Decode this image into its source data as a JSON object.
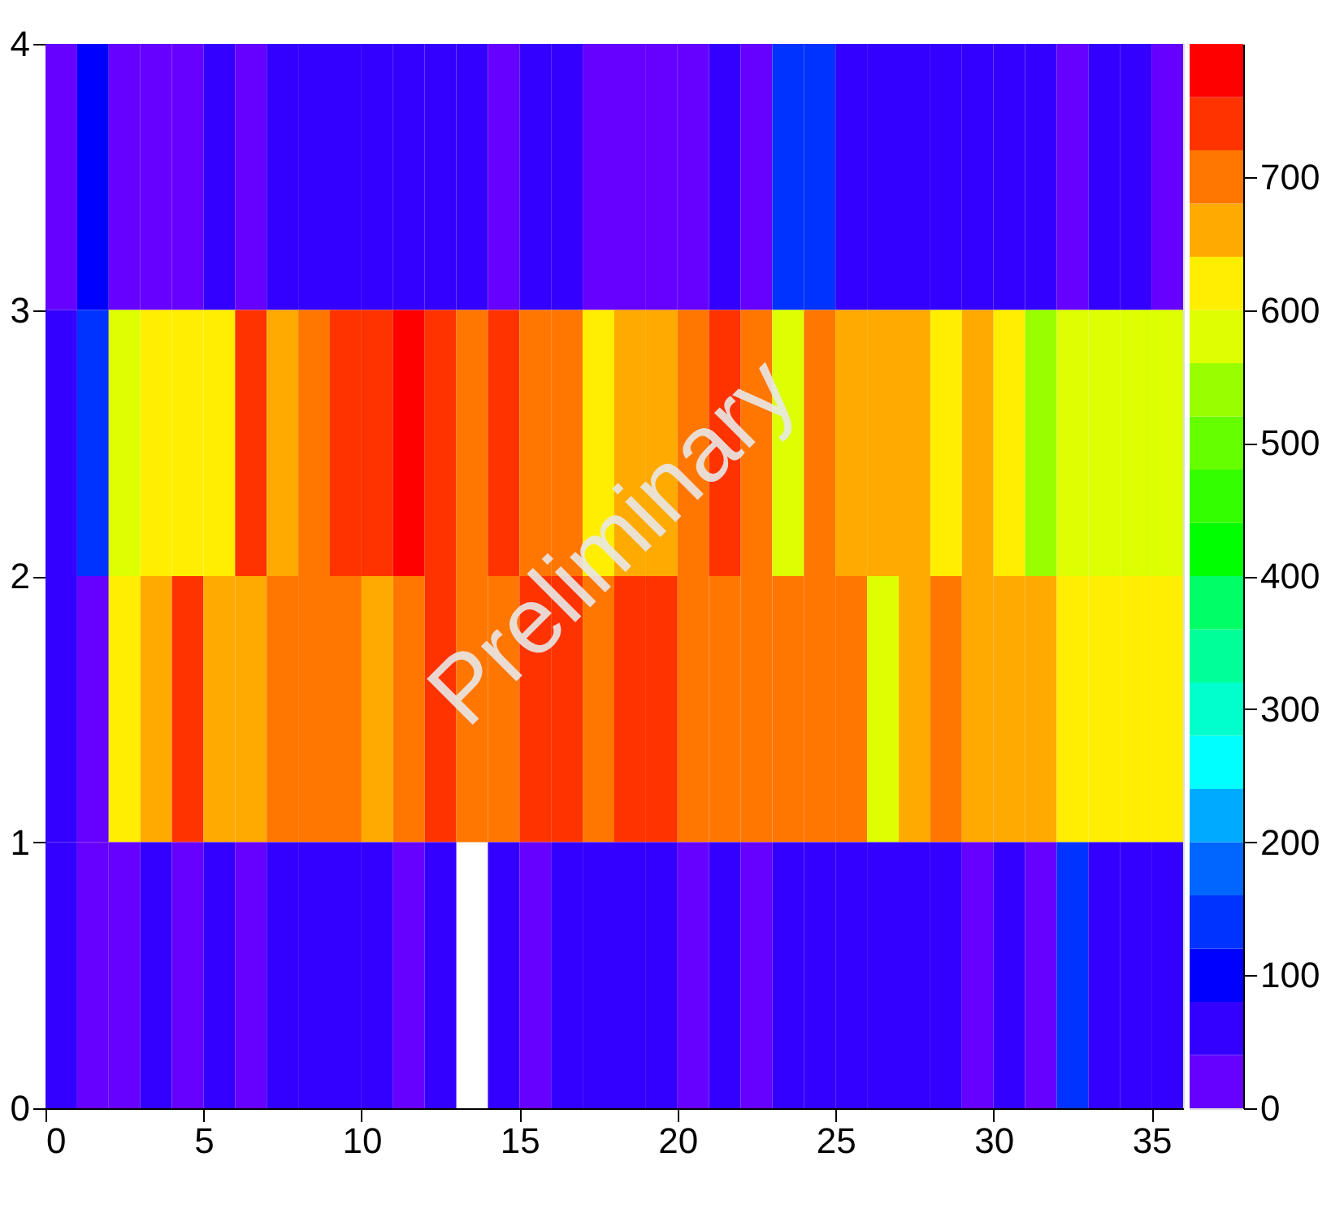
{
  "chart_data": {
    "type": "heatmap",
    "xlim": [
      0,
      36
    ],
    "xticks": [
      0,
      5,
      10,
      15,
      20,
      25,
      30,
      35
    ],
    "ylim": [
      0,
      4
    ],
    "yticks": [
      0,
      1,
      2,
      3,
      4
    ],
    "cells": [
      [
        20,
        100,
        20,
        20,
        20,
        60,
        20,
        60,
        60,
        60,
        60,
        60,
        60,
        60,
        20,
        60,
        60,
        20,
        20,
        20,
        20,
        60,
        20,
        140,
        140,
        60,
        60,
        60,
        60,
        60,
        60,
        60,
        20,
        60,
        60,
        20
      ],
      [
        60,
        140,
        580,
        620,
        620,
        620,
        740,
        660,
        700,
        740,
        740,
        780,
        740,
        700,
        740,
        700,
        700,
        620,
        660,
        660,
        700,
        740,
        700,
        580,
        700,
        660,
        660,
        660,
        620,
        660,
        620,
        540,
        580,
        580,
        580,
        580
      ],
      [
        60,
        20,
        620,
        660,
        740,
        660,
        660,
        700,
        700,
        700,
        660,
        700,
        740,
        700,
        700,
        740,
        740,
        700,
        740,
        740,
        700,
        700,
        700,
        700,
        700,
        700,
        580,
        660,
        700,
        660,
        660,
        660,
        620,
        620,
        620,
        620
      ],
      [
        60,
        20,
        20,
        60,
        20,
        60,
        20,
        60,
        60,
        60,
        60,
        20,
        60,
        null,
        60,
        20,
        60,
        60,
        60,
        60,
        20,
        60,
        20,
        60,
        60,
        60,
        60,
        60,
        60,
        20,
        60,
        20,
        140,
        60,
        60,
        60
      ]
    ],
    "clim": [
      0,
      800
    ],
    "cticks": [
      0,
      100,
      200,
      300,
      400,
      500,
      600,
      700
    ],
    "annotations": [
      "Preliminary"
    ]
  }
}
